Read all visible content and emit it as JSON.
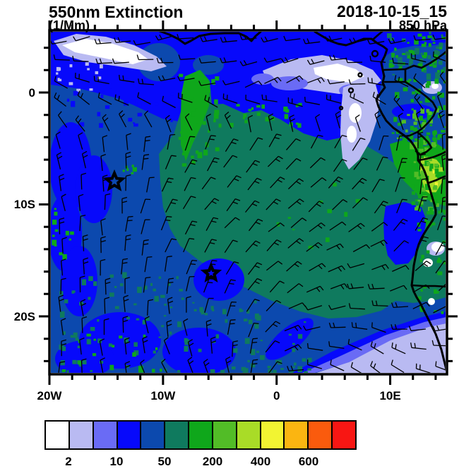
{
  "header": {
    "title": "550nm Extinction",
    "units": "(1/Mm)",
    "datetime": "2018-10-15_15",
    "level": "850 hPa"
  },
  "y_axis": {
    "labels": [
      "0",
      "10S",
      "20S"
    ]
  },
  "x_axis": {
    "labels": [
      "20W",
      "10W",
      "0",
      "10E"
    ]
  },
  "colorbar": {
    "labels": [
      "2",
      "10",
      "50",
      "200",
      "400",
      "600"
    ],
    "colors": [
      "#FFFFFF",
      "#B9BAF2",
      "#6A6BF5",
      "#0709FB",
      "#0C49AE",
      "#0F7A5E",
      "#0FA71B",
      "#52BC27",
      "#A9DC27",
      "#F2F432",
      "#FBB511",
      "#FA5B0D",
      "#F81613"
    ]
  },
  "chart_data": {
    "type": "heatmap",
    "title": "550nm Extinction",
    "units": "(1/Mm)",
    "valid_time": "2018-10-15_15",
    "level": "850 hPa",
    "x_axis": {
      "tick_labels": [
        "20W",
        "10W",
        "0",
        "10E"
      ],
      "range_deg_lon": [
        -20,
        15
      ]
    },
    "y_axis": {
      "tick_labels": [
        "0",
        "10S",
        "20S"
      ],
      "range_deg_lat": [
        -25.3,
        5.6
      ]
    },
    "colorbar": {
      "boundary_labels": [
        "2",
        "10",
        "50",
        "200",
        "400",
        "600"
      ],
      "colors": [
        "#FFFFFF",
        "#B9BAF2",
        "#6A6BF5",
        "#0709FB",
        "#0C49AE",
        "#0F7A5E",
        "#0FA71B",
        "#52BC27",
        "#A9DC27",
        "#F2F432",
        "#FBB511",
        "#FA5B0D",
        "#F81613"
      ]
    },
    "overlay": "wind barbs at 850 hPa over filled extinction contours, African coastline and country borders at right",
    "markers": [
      {
        "shape": "star",
        "lon_deg": -14.1,
        "lat_deg": -8.0
      },
      {
        "shape": "star",
        "lon_deg": -5.8,
        "lat_deg": -16.2
      }
    ],
    "field_estimates": [
      {
        "area": "central ocean plume (2W-12E, 2S-19S)",
        "extinction_1_per_Mm": "50-200"
      },
      {
        "area": "west and south ocean background",
        "extinction_1_per_Mm": "20-50"
      },
      {
        "area": "top-left and top-center streaks",
        "extinction_1_per_Mm": "1-5"
      },
      {
        "area": "southeast corner (Namibia coast)",
        "extinction_1_per_Mm": "2-10"
      },
      {
        "area": "Congo/Angola coast land strip",
        "extinction_1_per_Mm": "200-500"
      }
    ]
  }
}
